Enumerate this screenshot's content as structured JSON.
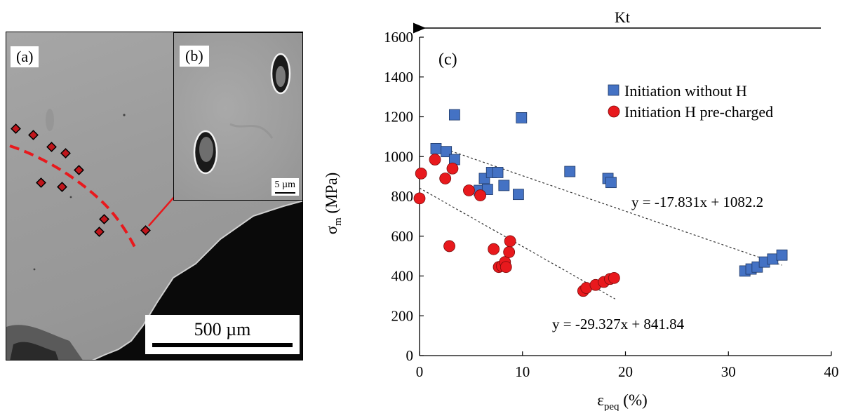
{
  "micrograph": {
    "label_a": "(a)",
    "label_b": "(b)",
    "inset_scale": "5 µm",
    "main_scale": "500 µm"
  },
  "chart_data": {
    "type": "scatter",
    "panel_label": "(c)",
    "top_arrow_label": "Kt",
    "xlabel": "εpeq (%)",
    "ylabel": "σm (MPa)",
    "xlim": [
      0,
      40
    ],
    "ylim": [
      0,
      1600
    ],
    "xticks": [
      0,
      10,
      20,
      30,
      40
    ],
    "yticks": [
      0,
      200,
      400,
      600,
      800,
      1000,
      1200,
      1400,
      1600
    ],
    "legend_position": "top-right",
    "series": [
      {
        "name": "Initiation without H",
        "marker": "square",
        "color": "#4472c4",
        "x": [
          3.4,
          9.9,
          1.6,
          2.6,
          3.4,
          5.8,
          6.3,
          6.6,
          7.0,
          7.6,
          8.2,
          9.6,
          14.6,
          18.3,
          18.6,
          31.6,
          32.2,
          32.8,
          33.5,
          34.3,
          35.2
        ],
        "y": [
          1210,
          1195,
          1040,
          1025,
          985,
          830,
          890,
          835,
          920,
          920,
          855,
          810,
          925,
          890,
          870,
          425,
          435,
          445,
          470,
          485,
          505
        ],
        "trendline": {
          "equation": "y = -17.831x + 1082.2",
          "slope": -17.831,
          "intercept": 1082.2,
          "x_range": [
            1.5,
            35.2
          ]
        }
      },
      {
        "name": "Initiation H pre-charged",
        "marker": "circle",
        "color": "#e8191d",
        "x": [
          0.0,
          0.15,
          1.5,
          2.5,
          3.2,
          2.9,
          4.8,
          5.9,
          7.2,
          7.7,
          8.0,
          8.3,
          8.4,
          8.7,
          8.8,
          15.9,
          16.2,
          17.1,
          17.9,
          18.5,
          18.9
        ],
        "y": [
          790,
          915,
          985,
          890,
          940,
          550,
          830,
          805,
          535,
          445,
          450,
          470,
          445,
          520,
          575,
          325,
          340,
          355,
          370,
          385,
          390
        ],
        "trendline": {
          "equation": "y = -29.327x + 841.84",
          "slope": -29.327,
          "intercept": 841.84,
          "x_range": [
            0,
            19.0
          ]
        }
      }
    ]
  }
}
